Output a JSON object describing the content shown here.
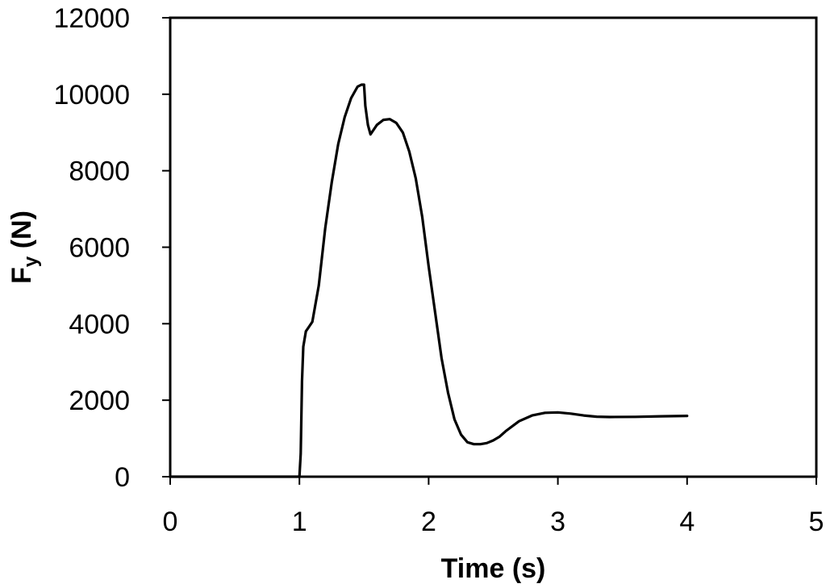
{
  "chart_data": {
    "type": "line",
    "xlabel": "Time (s)",
    "ylabel_main": "F",
    "ylabel_sub": "y",
    "ylabel_unit": " (N)",
    "xlim": [
      0,
      5
    ],
    "ylim": [
      0,
      12000
    ],
    "xticks": [
      "0",
      "1",
      "2",
      "3",
      "4",
      "5"
    ],
    "yticks": [
      "0",
      "2000",
      "4000",
      "6000",
      "8000",
      "10000",
      "12000"
    ],
    "grid": false,
    "legend": "none",
    "series": [
      {
        "color": "#000000",
        "x": [
          0,
          1.0,
          1.01,
          1.02,
          1.03,
          1.05,
          1.07,
          1.1,
          1.15,
          1.2,
          1.25,
          1.3,
          1.35,
          1.4,
          1.45,
          1.48,
          1.5,
          1.51,
          1.53,
          1.55,
          1.57,
          1.6,
          1.65,
          1.7,
          1.75,
          1.8,
          1.85,
          1.9,
          1.95,
          2.0,
          2.05,
          2.1,
          2.15,
          2.2,
          2.25,
          2.3,
          2.35,
          2.4,
          2.45,
          2.5,
          2.55,
          2.6,
          2.7,
          2.8,
          2.9,
          3.0,
          3.1,
          3.2,
          3.3,
          3.4,
          3.6,
          3.8,
          4.0
        ],
        "y": [
          0,
          0,
          600,
          2500,
          3400,
          3800,
          3900,
          4050,
          5000,
          6500,
          7700,
          8700,
          9400,
          9900,
          10200,
          10250,
          10250,
          9700,
          9200,
          8950,
          9050,
          9200,
          9330,
          9350,
          9250,
          9000,
          8500,
          7800,
          6800,
          5500,
          4300,
          3100,
          2200,
          1500,
          1100,
          900,
          850,
          850,
          880,
          950,
          1050,
          1200,
          1450,
          1600,
          1670,
          1680,
          1650,
          1600,
          1570,
          1560,
          1565,
          1580,
          1590
        ]
      }
    ]
  }
}
